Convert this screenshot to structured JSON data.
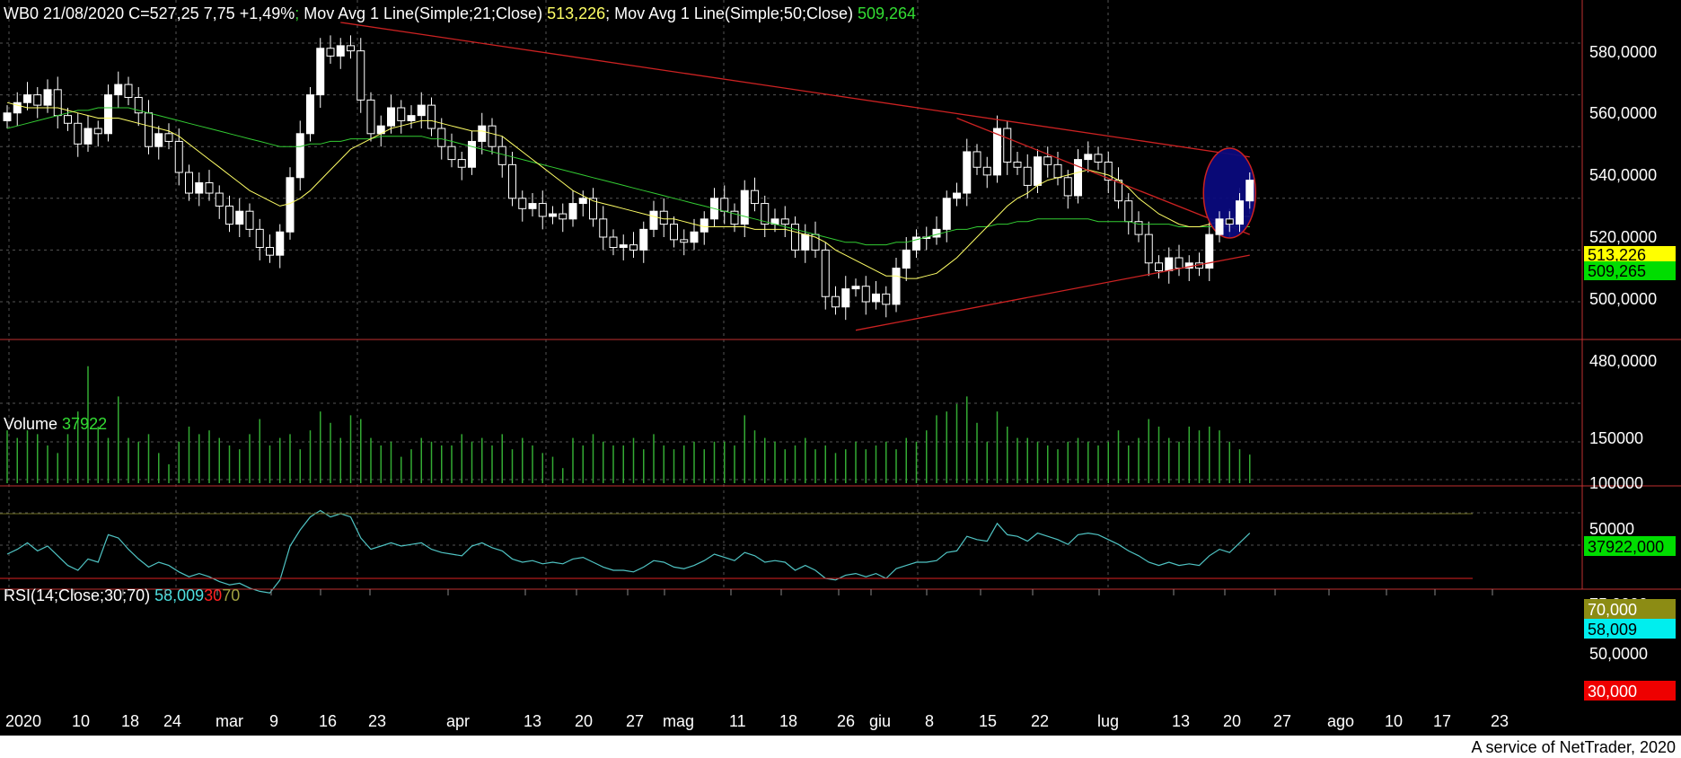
{
  "header": {
    "symbol_info": "WB0 21/08/2020 C=527,25 7,75 +1,49%",
    "sep1": ";",
    "ma21_label": " Mov Avg 1 Line(Simple;21;Close) ",
    "ma21_value": "513,226",
    "sep2": ";",
    "ma50_label": " Mov Avg 1 Line(Simple;50;Close) ",
    "ma50_value": "509,264"
  },
  "volume_header": {
    "label": "Volume ",
    "value": "37922"
  },
  "rsi_header": {
    "label": "RSI(14;Close;30;70) ",
    "value": "58,009",
    "lower": "30",
    "upper": "70"
  },
  "price_ticks": [
    "580,0000",
    "560,0000",
    "540,0000",
    "520,0000",
    "500,0000",
    "480,0000"
  ],
  "volume_ticks": [
    "150000",
    "100000",
    "50000"
  ],
  "rsi_ticks": [
    "75,0000",
    "50,0000"
  ],
  "badges": {
    "ma21": "513,226",
    "ma50": "509,265",
    "volume": "37922,000",
    "rsi_upper": "70,000",
    "rsi_value": "58,009",
    "rsi_lower": "30,000"
  },
  "x_labels": [
    "2020",
    "10",
    "18",
    "24",
    "mar",
    "9",
    "16",
    "23",
    "apr",
    "13",
    "20",
    "27",
    "mag",
    "11",
    "18",
    "26",
    "giu",
    "8",
    "15",
    "22",
    "lug",
    "13",
    "20",
    "27",
    "ago",
    "10",
    "17",
    "23"
  ],
  "footer": "A service of NetTrader, 2020",
  "colors": {
    "background": "#000000",
    "candle": "#ffffff",
    "ma21": "#ffff66",
    "ma50": "#33cc33",
    "volume": "#33aa33",
    "rsi": "#4fc3c3",
    "trendline": "#cc2222",
    "highlight_ellipse": "#0a0a80",
    "grid": "#555555"
  },
  "chart_data": {
    "type": "candlestick",
    "title": "WB0 21/08/2020 C=527,25 7,75 +1,49%",
    "price_range": [
      465,
      590
    ],
    "volume_range": [
      0,
      170000
    ],
    "rsi_range": [
      20,
      80
    ],
    "rsi_levels": [
      30,
      70
    ],
    "price_gridlines": [
      580,
      560,
      540,
      520,
      500,
      480
    ],
    "x_tick_labels": [
      "2020",
      "10",
      "18",
      "24",
      "mar",
      "9",
      "16",
      "23",
      "apr",
      "13",
      "20",
      "27",
      "mag",
      "11",
      "18",
      "26",
      "giu",
      "8",
      "15",
      "22",
      "lug",
      "13",
      "20",
      "27",
      "ago",
      "10",
      "17",
      "23"
    ],
    "last_values": {
      "close": 527.25,
      "ma21": 513.226,
      "ma50": 509.264,
      "volume": 37922,
      "rsi": 58.009
    },
    "closes": [
      553,
      557,
      560,
      556,
      562,
      552,
      549,
      541,
      547,
      545,
      560,
      564,
      559,
      553,
      540,
      545,
      542,
      530,
      522,
      526,
      522,
      517,
      510,
      515,
      508,
      501,
      498,
      507,
      528,
      545,
      560,
      578,
      575,
      579,
      577,
      558,
      545,
      548,
      555,
      550,
      552,
      556,
      547,
      540,
      535,
      532,
      542,
      548,
      540,
      533,
      520,
      516,
      518,
      513,
      514,
      512,
      518,
      520,
      512,
      505,
      501,
      502,
      500,
      508,
      515,
      510,
      504,
      503,
      507,
      512,
      520,
      515,
      510,
      523,
      518,
      510,
      512,
      510,
      500,
      506,
      500,
      482,
      478,
      485,
      486,
      480,
      483,
      479,
      493,
      500,
      505,
      505,
      508,
      520,
      522,
      538,
      532,
      529,
      547,
      534,
      532,
      525,
      536,
      533,
      528,
      521,
      535,
      537,
      534,
      527,
      519,
      511,
      506,
      495,
      492,
      497,
      493,
      495,
      493,
      506,
      512,
      510,
      519,
      527
    ],
    "volumes": [
      70000,
      60000,
      70000,
      65000,
      50000,
      40000,
      65000,
      95000,
      155000,
      75000,
      60000,
      115000,
      60000,
      55000,
      65000,
      40000,
      25000,
      55000,
      75000,
      65000,
      70000,
      60000,
      50000,
      45000,
      65000,
      85000,
      50000,
      60000,
      65000,
      45000,
      70000,
      95000,
      80000,
      60000,
      90000,
      85000,
      60000,
      50000,
      55000,
      35000,
      45000,
      60000,
      55000,
      50000,
      50000,
      65000,
      55000,
      60000,
      50000,
      65000,
      45000,
      60000,
      50000,
      40000,
      35000,
      20000,
      60000,
      50000,
      65000,
      55000,
      50000,
      50000,
      60000,
      45000,
      65000,
      50000,
      45000,
      50000,
      55000,
      45000,
      55000,
      55000,
      50000,
      90000,
      70000,
      60000,
      55000,
      45000,
      50000,
      60000,
      45000,
      50000,
      40000,
      45000,
      55000,
      45000,
      50000,
      55000,
      45000,
      60000,
      55000,
      70000,
      90000,
      95000,
      105000,
      115000,
      80000,
      55000,
      95000,
      75000,
      60000,
      60000,
      55000,
      50000,
      45000,
      55000,
      60000,
      55000,
      50000,
      55000,
      70000,
      50000,
      60000,
      85000,
      75000,
      60000,
      55000,
      75000,
      70000,
      75000,
      70000,
      55000,
      45000,
      37922
    ],
    "rsi": [
      45,
      48,
      52,
      47,
      50,
      44,
      38,
      35,
      42,
      40,
      57,
      55,
      48,
      42,
      37,
      40,
      38,
      34,
      31,
      33,
      31,
      28,
      26,
      27,
      24,
      22,
      21,
      29,
      50,
      60,
      68,
      72,
      68,
      70,
      68,
      55,
      48,
      50,
      52,
      50,
      51,
      52,
      48,
      46,
      45,
      44,
      50,
      52,
      49,
      47,
      42,
      40,
      41,
      39,
      40,
      39,
      42,
      43,
      40,
      37,
      35,
      35,
      34,
      37,
      41,
      40,
      37,
      36,
      38,
      41,
      45,
      43,
      41,
      46,
      44,
      40,
      41,
      40,
      35,
      38,
      35,
      30,
      29,
      32,
      33,
      31,
      33,
      30,
      36,
      38,
      40,
      40,
      41,
      46,
      47,
      56,
      54,
      53,
      64,
      57,
      56,
      53,
      58,
      56,
      54,
      51,
      57,
      58,
      57,
      54,
      51,
      47,
      44,
      40,
      38,
      40,
      38,
      39,
      38,
      44,
      48,
      46,
      52,
      58
    ],
    "ma21": [
      557,
      556,
      555,
      555,
      555,
      555,
      554,
      553,
      552,
      551,
      551,
      551,
      550,
      549,
      548,
      547,
      546,
      544,
      541,
      538,
      535,
      532,
      529,
      526,
      523,
      521,
      519,
      517,
      518,
      520,
      523,
      527,
      531,
      535,
      539,
      541,
      543,
      545,
      547,
      548,
      549,
      550,
      550,
      549,
      548,
      547,
      546,
      546,
      545,
      544,
      541,
      538,
      535,
      532,
      529,
      526,
      523,
      521,
      519,
      518,
      517,
      516,
      515,
      514,
      513,
      512,
      512,
      511,
      510,
      509,
      509,
      509,
      509,
      509,
      508,
      508,
      508,
      508,
      507,
      506,
      505,
      503,
      500,
      498,
      496,
      494,
      492,
      490,
      490,
      489,
      489,
      490,
      491,
      494,
      497,
      501,
      505,
      509,
      513,
      517,
      520,
      522,
      525,
      527,
      528,
      529,
      530,
      531,
      530,
      529,
      527,
      524,
      520,
      517,
      514,
      512,
      510,
      509,
      509,
      510,
      511,
      512,
      513,
      513
    ],
    "ma50": [
      547,
      548,
      549,
      550,
      551,
      552,
      553,
      554,
      554,
      555,
      555,
      555,
      555,
      554,
      553,
      552,
      551,
      550,
      549,
      548,
      547,
      546,
      545,
      544,
      543,
      542,
      541,
      540,
      540,
      540,
      541,
      541,
      542,
      542,
      543,
      543,
      543,
      544,
      544,
      544,
      544,
      544,
      543,
      543,
      542,
      541,
      540,
      539,
      538,
      537,
      536,
      535,
      534,
      533,
      532,
      531,
      530,
      529,
      528,
      527,
      526,
      525,
      524,
      523,
      522,
      521,
      520,
      519,
      518,
      517,
      516,
      515,
      514,
      513,
      512,
      511,
      510,
      509,
      508,
      507,
      506,
      505,
      504,
      503,
      503,
      502,
      502,
      502,
      503,
      503,
      504,
      505,
      506,
      507,
      508,
      508,
      509,
      509,
      510,
      510,
      511,
      511,
      512,
      512,
      512,
      512,
      512,
      512,
      511,
      511,
      511,
      511,
      510,
      510,
      510,
      510,
      509,
      509,
      509,
      509,
      509,
      509,
      509,
      509
    ],
    "trendlines": [
      {
        "from": [
          33,
          588
        ],
        "to": [
          123,
          536
        ]
      },
      {
        "from": [
          94,
          551
        ],
        "to": [
          123,
          506
        ]
      },
      {
        "from": [
          84,
          469
        ],
        "to": [
          123,
          498
        ]
      }
    ],
    "highlight": {
      "index": 121,
      "price_center": 522
    }
  }
}
